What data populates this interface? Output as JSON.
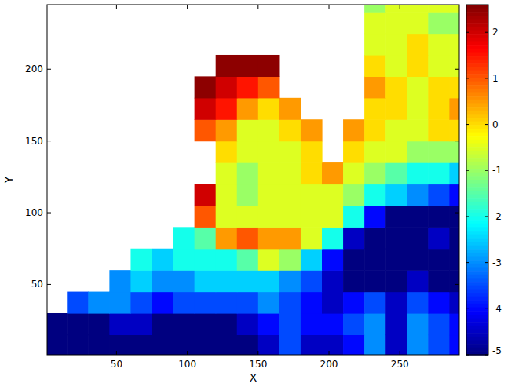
{
  "chart_data": {
    "type": "heatmap",
    "xlabel": "X",
    "ylabel": "Y",
    "xlim": [
      1,
      292
    ],
    "ylim": [
      1,
      245
    ],
    "xticks": [
      50,
      100,
      150,
      200,
      250
    ],
    "yticks": [
      50,
      100,
      150,
      200
    ],
    "colorbar_range": [
      -5,
      2.6
    ],
    "colorbar_ticks": [
      -5,
      -4,
      -3,
      -2,
      -1,
      0,
      1,
      2
    ],
    "x": [
      7.5,
      22.5,
      37.5,
      52.5,
      67.5,
      82.5,
      97.5,
      112.5,
      127.5,
      142.5,
      157.5,
      172.5,
      187.5,
      202.5,
      217.5,
      232.5,
      247.5,
      262.5,
      277.5,
      292.5
    ],
    "y": [
      7.5,
      22.5,
      37.5,
      52.5,
      67.5,
      82.5,
      97.5,
      112.5,
      127.5,
      142.5,
      157.5,
      172.5,
      187.5,
      202.5,
      217.5,
      232.5,
      247.5
    ],
    "z": [
      [
        -5,
        -5,
        -5,
        -5,
        -5,
        -5,
        -5,
        -5,
        -5,
        -5,
        -4.5,
        -3.5,
        -4.5,
        -4.5,
        -4,
        -3,
        -4.5,
        -3,
        -3.5,
        -4
      ],
      [
        -5,
        -5,
        -5,
        -4.5,
        -4.5,
        -5,
        -5,
        -5,
        -5,
        -4.5,
        -4,
        -3.5,
        -4,
        -4,
        -3.5,
        -3,
        -4.5,
        -3,
        -3.5,
        -4
      ],
      [
        null,
        -3.5,
        -3,
        -3,
        -3.5,
        -4,
        -3.5,
        -3.5,
        -3.5,
        -3.5,
        -3,
        -3.5,
        -4,
        -4.5,
        -4,
        -3.5,
        -4.5,
        -3.5,
        -4,
        -4.5
      ],
      [
        null,
        null,
        null,
        -3,
        -2.5,
        -3,
        -3,
        -2.5,
        -2.5,
        -2.5,
        -2.5,
        -3,
        -3.5,
        -4.5,
        -5,
        -5,
        -5,
        -4.5,
        -5,
        -5
      ],
      [
        null,
        null,
        null,
        null,
        -2,
        -2.5,
        -2,
        -2,
        -2,
        -1.5,
        -0.5,
        -1,
        -2.5,
        -4,
        -5,
        -5,
        -5,
        -5,
        -5,
        -5
      ],
      [
        null,
        null,
        null,
        null,
        null,
        null,
        -2,
        -1.5,
        0.5,
        1,
        0.5,
        0.5,
        -0.5,
        -2,
        -4.5,
        -5,
        -5,
        -5,
        -4.5,
        -5
      ],
      [
        null,
        null,
        null,
        null,
        null,
        null,
        null,
        1,
        -0.5,
        -0.5,
        -0.5,
        -0.5,
        -0.5,
        -0.5,
        -2,
        -4,
        -5,
        -5,
        -5,
        -5
      ],
      [
        null,
        null,
        null,
        null,
        null,
        null,
        null,
        2,
        -0.5,
        -1,
        -0.5,
        -0.5,
        -0.5,
        -0.5,
        -1,
        -2,
        -2.5,
        -3,
        -3.5,
        -4
      ],
      [
        null,
        null,
        null,
        null,
        null,
        null,
        null,
        null,
        -0.5,
        -1,
        -0.5,
        -0.5,
        0,
        0.5,
        -0.5,
        -1,
        -1.5,
        -2,
        -2,
        -2.5
      ],
      [
        null,
        null,
        null,
        null,
        null,
        null,
        null,
        null,
        0,
        -0.5,
        -0.5,
        -0.5,
        0,
        null,
        0,
        -0.5,
        -0.5,
        -1,
        -1,
        -1
      ],
      [
        null,
        null,
        null,
        null,
        null,
        null,
        null,
        1,
        0.5,
        -0.5,
        -0.5,
        0,
        0.5,
        null,
        0.5,
        0,
        -0.5,
        -0.5,
        0,
        0
      ],
      [
        null,
        null,
        null,
        null,
        null,
        null,
        null,
        2,
        1.5,
        0.5,
        0,
        0.5,
        null,
        null,
        null,
        0,
        0,
        -0.5,
        0,
        0.5
      ],
      [
        null,
        null,
        null,
        null,
        null,
        null,
        null,
        2.5,
        2,
        1.5,
        1,
        null,
        null,
        null,
        null,
        0.5,
        0,
        -0.5,
        0,
        0
      ],
      [
        null,
        null,
        null,
        null,
        null,
        null,
        null,
        null,
        2.5,
        2.5,
        2.5,
        null,
        null,
        null,
        null,
        0,
        -0.5,
        0,
        -0.5,
        -0.5
      ],
      [
        null,
        null,
        null,
        null,
        null,
        null,
        null,
        null,
        null,
        null,
        null,
        null,
        null,
        null,
        null,
        -0.5,
        -0.5,
        0,
        -0.5,
        -0.5
      ],
      [
        null,
        null,
        null,
        null,
        null,
        null,
        null,
        null,
        null,
        null,
        null,
        null,
        null,
        null,
        null,
        -0.5,
        -0.5,
        -0.5,
        -1,
        -1
      ],
      [
        null,
        null,
        null,
        null,
        null,
        null,
        null,
        null,
        null,
        null,
        null,
        null,
        null,
        null,
        null,
        -1,
        -0.5,
        -0.5,
        -0.5,
        -0.5
      ]
    ]
  }
}
